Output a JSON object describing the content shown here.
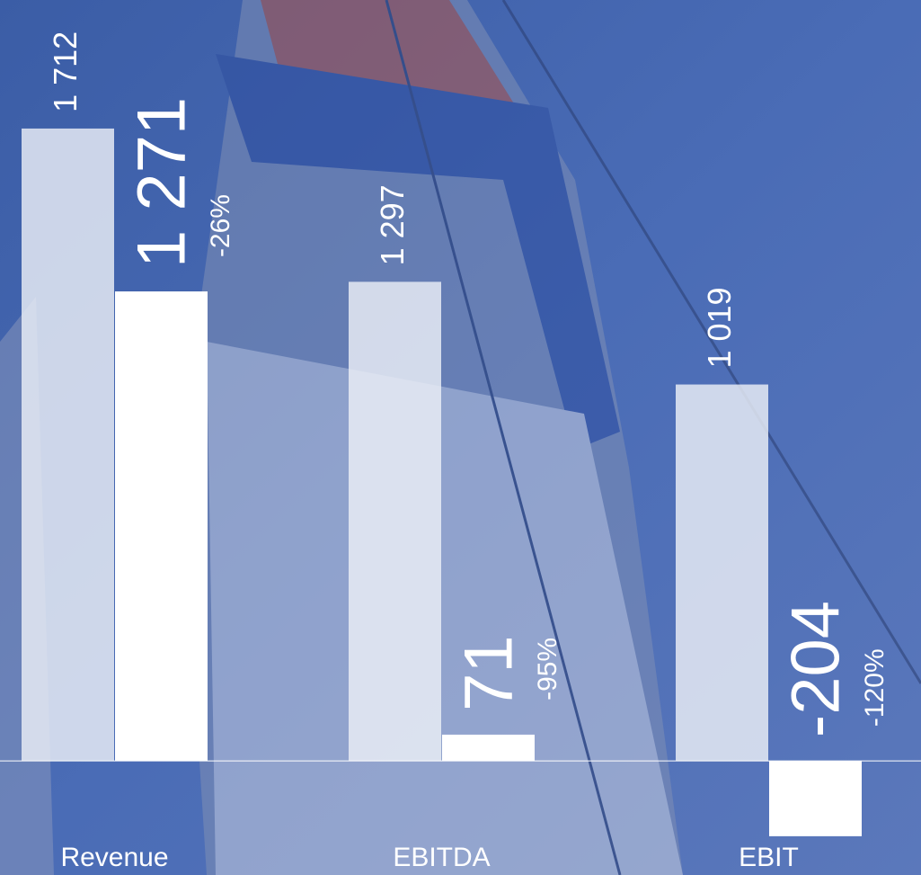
{
  "chart_data": {
    "type": "bar",
    "categories": [
      "Revenue",
      "EBITDA",
      "EBIT"
    ],
    "series": [
      {
        "color": "rgba(236,239,246,0.82)",
        "values": [
          1712,
          1297,
          1019
        ],
        "value_labels": [
          "1 712",
          "1 297",
          "1 019"
        ]
      },
      {
        "color": "#ffffff",
        "values": [
          1271,
          71,
          -204
        ],
        "value_labels": [
          "1 271",
          "71",
          "-204"
        ]
      }
    ],
    "annotations": [
      "-26%",
      "-95%",
      "-120%"
    ],
    "ylim": [
      -309,
      2060
    ]
  }
}
